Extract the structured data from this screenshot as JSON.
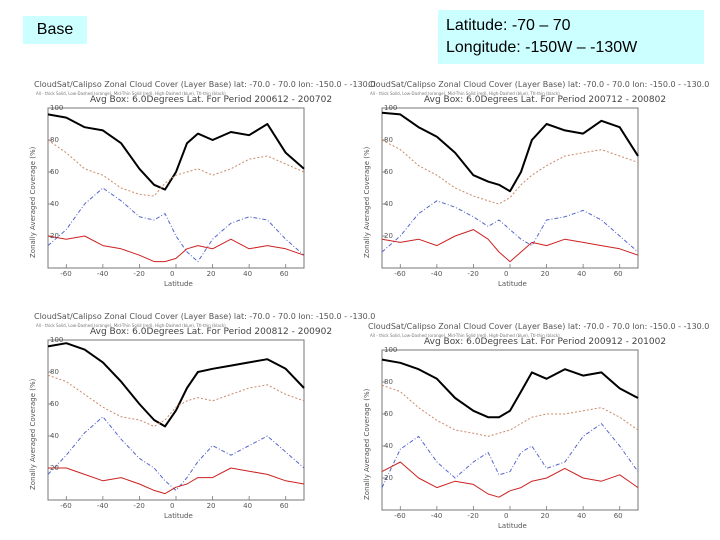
{
  "header": {
    "base_label": "Base",
    "latitude": "Latitude:   -70 – 70",
    "longitude": "Longitude: -150W – -130W"
  },
  "colors": {
    "label_bg": "#ccffff",
    "thick": "#000000",
    "low": "#cc8866",
    "mid": "#cc2222",
    "high": "#5566cc"
  },
  "chart_data": [
    {
      "type": "line",
      "title": "CloudSat/Calipso Zonal Cloud Cover (Layer Base) lat: -70.0 - 70.0  lon: -150.0 - -130.0",
      "legend_text": "All - thick Solid, Low-Dashed (orange), Mid-Thin Solid (red), High-Dashed (blue), Ttl-thin (black)",
      "subtitle": "Avg Box: 6.0Degrees Lat. For Period 200612 - 200702",
      "xlabel": "Latitude",
      "ylabel": "Zonally Averaged Coverage (%)",
      "xticks": [
        -60,
        -40,
        -20,
        0,
        20,
        40,
        60
      ],
      "ytick_labels": [
        "20",
        "40",
        "60",
        "80",
        "100"
      ],
      "xlim": [
        -70,
        70
      ],
      "ylim": [
        0,
        100
      ],
      "x": [
        -70,
        -60,
        -50,
        -40,
        -30,
        -20,
        -12,
        -6,
        0,
        6,
        12,
        20,
        30,
        40,
        50,
        60,
        70
      ],
      "series": [
        {
          "name": "All",
          "style": "thick",
          "values": [
            96,
            94,
            88,
            86,
            78,
            62,
            52,
            49,
            60,
            78,
            84,
            80,
            85,
            83,
            90,
            72,
            62
          ]
        },
        {
          "name": "Low",
          "style": "low",
          "values": [
            80,
            72,
            62,
            58,
            50,
            46,
            45,
            53,
            58,
            60,
            62,
            58,
            62,
            68,
            70,
            65,
            60
          ]
        },
        {
          "name": "High",
          "style": "high",
          "values": [
            14,
            24,
            40,
            50,
            42,
            32,
            30,
            34,
            20,
            10,
            4,
            18,
            28,
            32,
            30,
            18,
            8
          ]
        },
        {
          "name": "Mid",
          "style": "mid",
          "values": [
            20,
            18,
            20,
            14,
            12,
            8,
            4,
            4,
            6,
            12,
            14,
            12,
            18,
            12,
            14,
            12,
            8
          ]
        }
      ]
    },
    {
      "type": "line",
      "title": "CloudSat/Calipso Zonal Cloud Cover (Layer Base) lat: -70.0 - 70.0  lon: -150.0 - -130.0",
      "legend_text": "All - thick Solid, Low-Dashed (orange), Mid-Thin Solid (red), High-Dashed (blue), Ttl-thin (black)",
      "subtitle": "Avg Box: 6.0Degrees Lat. For Period 200712 - 200802",
      "xlabel": "Latitude",
      "ylabel": "Zonally Averaged Coverage (%)",
      "xticks": [
        -60,
        -40,
        -20,
        0,
        20,
        40,
        60
      ],
      "ytick_labels": [
        "20",
        "40",
        "60",
        "80",
        "100"
      ],
      "xlim": [
        -70,
        70
      ],
      "ylim": [
        0,
        100
      ],
      "x": [
        -70,
        -60,
        -50,
        -40,
        -30,
        -20,
        -12,
        -6,
        0,
        6,
        12,
        20,
        30,
        40,
        50,
        60,
        70
      ],
      "series": [
        {
          "name": "All",
          "style": "thick",
          "values": [
            97,
            96,
            88,
            82,
            72,
            58,
            54,
            52,
            48,
            60,
            80,
            90,
            86,
            84,
            92,
            88,
            70
          ]
        },
        {
          "name": "Low",
          "style": "low",
          "values": [
            80,
            74,
            64,
            58,
            50,
            45,
            42,
            40,
            44,
            52,
            58,
            64,
            70,
            72,
            74,
            70,
            66
          ]
        },
        {
          "name": "High",
          "style": "high",
          "values": [
            10,
            20,
            34,
            42,
            38,
            32,
            26,
            30,
            24,
            18,
            14,
            30,
            32,
            36,
            30,
            20,
            10
          ]
        },
        {
          "name": "Mid",
          "style": "mid",
          "values": [
            18,
            16,
            18,
            14,
            20,
            24,
            18,
            10,
            4,
            10,
            16,
            14,
            18,
            16,
            14,
            12,
            8
          ]
        }
      ]
    },
    {
      "type": "line",
      "title": "CloudSat/Calipso Zonal Cloud Cover (Layer Base) lat: -70.0 - 70.0  lon: -150.0 - -130.0",
      "legend_text": "All - thick Solid, Low-Dashed (orange), Mid-Thin Solid (red), High-Dashed (blue), Ttl-thin (black)",
      "subtitle": "Avg Box: 6.0Degrees Lat. For Period 200812 - 200902",
      "xlabel": "Latitude",
      "ylabel": "Zonally Averaged Coverage (%)",
      "xticks": [
        -60,
        -40,
        -20,
        0,
        20,
        40,
        60
      ],
      "ytick_labels": [
        "20",
        "40",
        "60",
        "80",
        "100"
      ],
      "xlim": [
        -70,
        70
      ],
      "ylim": [
        0,
        100
      ],
      "x": [
        -70,
        -60,
        -50,
        -40,
        -30,
        -20,
        -12,
        -6,
        0,
        6,
        12,
        20,
        30,
        40,
        50,
        60,
        70
      ],
      "series": [
        {
          "name": "All",
          "style": "thick",
          "values": [
            96,
            98,
            94,
            86,
            74,
            60,
            50,
            46,
            56,
            70,
            80,
            82,
            84,
            86,
            88,
            82,
            70
          ]
        },
        {
          "name": "Low",
          "style": "low",
          "values": [
            78,
            74,
            66,
            58,
            52,
            50,
            46,
            50,
            58,
            62,
            64,
            62,
            66,
            70,
            72,
            66,
            62
          ]
        },
        {
          "name": "High",
          "style": "high",
          "values": [
            16,
            28,
            42,
            52,
            38,
            26,
            20,
            12,
            6,
            14,
            24,
            34,
            28,
            34,
            40,
            30,
            20
          ]
        },
        {
          "name": "Mid",
          "style": "mid",
          "values": [
            20,
            20,
            16,
            12,
            14,
            10,
            6,
            4,
            8,
            10,
            14,
            14,
            20,
            18,
            16,
            12,
            10
          ]
        }
      ]
    },
    {
      "type": "line",
      "title": "CloudSat/Calipso Zonal Cloud Cover (Layer Base) lat: -70.0 - 70.0  lon: -150.0 - -130.0",
      "legend_text": "All - thick Solid, Low-Dashed (orange), Mid-Thin Solid (red), High-Dashed (blue), Ttl-thin (black)",
      "subtitle": "Avg Box: 6.0Degrees Lat. For Period 200912 - 201002",
      "xlabel": "Latitude",
      "ylabel": "Zonally Averaged Coverage (%)",
      "xticks": [
        -60,
        -40,
        -20,
        0,
        20,
        40,
        60
      ],
      "ytick_labels": [
        "20",
        "40",
        "60",
        "80",
        "100"
      ],
      "xlim": [
        -70,
        70
      ],
      "ylim": [
        0,
        100
      ],
      "x": [
        -70,
        -60,
        -50,
        -40,
        -30,
        -20,
        -12,
        -6,
        0,
        6,
        12,
        20,
        30,
        40,
        50,
        60,
        70
      ],
      "series": [
        {
          "name": "All",
          "style": "thick",
          "values": [
            94,
            92,
            88,
            82,
            70,
            62,
            58,
            58,
            62,
            74,
            86,
            82,
            88,
            84,
            86,
            76,
            70
          ]
        },
        {
          "name": "Low",
          "style": "low",
          "values": [
            78,
            74,
            64,
            56,
            50,
            48,
            46,
            48,
            50,
            54,
            58,
            60,
            60,
            62,
            64,
            58,
            50
          ]
        },
        {
          "name": "High",
          "style": "high",
          "values": [
            14,
            38,
            46,
            30,
            20,
            30,
            36,
            22,
            24,
            36,
            40,
            26,
            30,
            46,
            54,
            40,
            24
          ]
        },
        {
          "name": "Mid",
          "style": "mid",
          "values": [
            24,
            30,
            20,
            14,
            18,
            16,
            10,
            8,
            12,
            14,
            18,
            20,
            26,
            20,
            18,
            22,
            14
          ]
        }
      ]
    }
  ]
}
